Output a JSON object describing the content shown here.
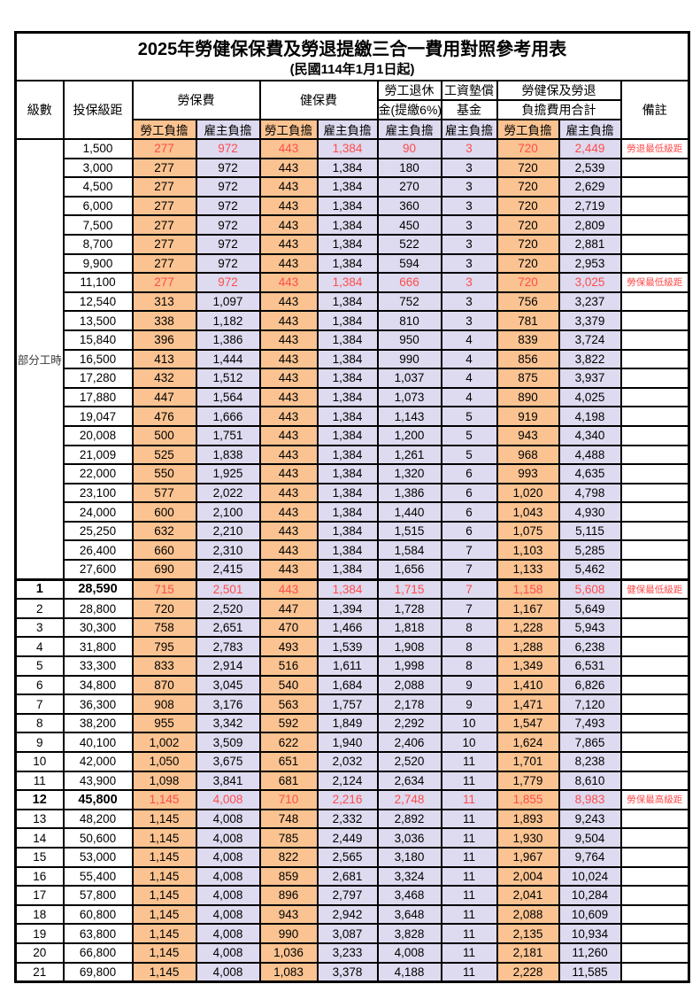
{
  "title": "2025年勞健保保費及勞退提繳三合一費用對照參考用表",
  "subtitle": "(民國114年1月1日起)",
  "headers": {
    "level": "級數",
    "bracket": "投保級距",
    "labor": "勞保費",
    "health": "健保費",
    "pension_line1": "勞工退休",
    "pension_line2": "金(提繳6%)",
    "fund_line1": "工資墊償",
    "fund_line2": "基金",
    "total_line1": "勞健保及勞退",
    "total_line2": "負擔費用合計",
    "note": "備註",
    "employee_share": "勞工負擔",
    "employer_share": "雇主負擔"
  },
  "part_time_label": "部分工時",
  "part_time_rowspan": 23,
  "colors": {
    "employee_bg": "#FAC391",
    "employer_bg": "#DEDAEF",
    "highlight_text": "#FF4C4C"
  },
  "rows": [
    {
      "level": "",
      "bracket": "1,500",
      "labor_employee": "277",
      "labor_employer": "972",
      "health_employee": "443",
      "health_employer": "1,384",
      "pension_employer": "90",
      "fund_employer": "3",
      "total_employee": "720",
      "total_employer": "2,449",
      "note": "勞退最低級距",
      "highlight": true,
      "bold": false
    },
    {
      "level": "",
      "bracket": "3,000",
      "labor_employee": "277",
      "labor_employer": "972",
      "health_employee": "443",
      "health_employer": "1,384",
      "pension_employer": "180",
      "fund_employer": "3",
      "total_employee": "720",
      "total_employer": "2,539",
      "note": "",
      "highlight": false,
      "bold": false
    },
    {
      "level": "",
      "bracket": "4,500",
      "labor_employee": "277",
      "labor_employer": "972",
      "health_employee": "443",
      "health_employer": "1,384",
      "pension_employer": "270",
      "fund_employer": "3",
      "total_employee": "720",
      "total_employer": "2,629",
      "note": "",
      "highlight": false,
      "bold": false
    },
    {
      "level": "",
      "bracket": "6,000",
      "labor_employee": "277",
      "labor_employer": "972",
      "health_employee": "443",
      "health_employer": "1,384",
      "pension_employer": "360",
      "fund_employer": "3",
      "total_employee": "720",
      "total_employer": "2,719",
      "note": "",
      "highlight": false,
      "bold": false
    },
    {
      "level": "",
      "bracket": "7,500",
      "labor_employee": "277",
      "labor_employer": "972",
      "health_employee": "443",
      "health_employer": "1,384",
      "pension_employer": "450",
      "fund_employer": "3",
      "total_employee": "720",
      "total_employer": "2,809",
      "note": "",
      "highlight": false,
      "bold": false
    },
    {
      "level": "",
      "bracket": "8,700",
      "labor_employee": "277",
      "labor_employer": "972",
      "health_employee": "443",
      "health_employer": "1,384",
      "pension_employer": "522",
      "fund_employer": "3",
      "total_employee": "720",
      "total_employer": "2,881",
      "note": "",
      "highlight": false,
      "bold": false
    },
    {
      "level": "",
      "bracket": "9,900",
      "labor_employee": "277",
      "labor_employer": "972",
      "health_employee": "443",
      "health_employer": "1,384",
      "pension_employer": "594",
      "fund_employer": "3",
      "total_employee": "720",
      "total_employer": "2,953",
      "note": "",
      "highlight": false,
      "bold": false
    },
    {
      "level": "",
      "bracket": "11,100",
      "labor_employee": "277",
      "labor_employer": "972",
      "health_employee": "443",
      "health_employer": "1,384",
      "pension_employer": "666",
      "fund_employer": "3",
      "total_employee": "720",
      "total_employer": "3,025",
      "note": "勞保最低級距",
      "highlight": true,
      "bold": false
    },
    {
      "level": "",
      "bracket": "12,540",
      "labor_employee": "313",
      "labor_employer": "1,097",
      "health_employee": "443",
      "health_employer": "1,384",
      "pension_employer": "752",
      "fund_employer": "3",
      "total_employee": "756",
      "total_employer": "3,237",
      "note": "",
      "highlight": false,
      "bold": false
    },
    {
      "level": "",
      "bracket": "13,500",
      "labor_employee": "338",
      "labor_employer": "1,182",
      "health_employee": "443",
      "health_employer": "1,384",
      "pension_employer": "810",
      "fund_employer": "3",
      "total_employee": "781",
      "total_employer": "3,379",
      "note": "",
      "highlight": false,
      "bold": false
    },
    {
      "level": "",
      "bracket": "15,840",
      "labor_employee": "396",
      "labor_employer": "1,386",
      "health_employee": "443",
      "health_employer": "1,384",
      "pension_employer": "950",
      "fund_employer": "4",
      "total_employee": "839",
      "total_employer": "3,724",
      "note": "",
      "highlight": false,
      "bold": false
    },
    {
      "level": "",
      "bracket": "16,500",
      "labor_employee": "413",
      "labor_employer": "1,444",
      "health_employee": "443",
      "health_employer": "1,384",
      "pension_employer": "990",
      "fund_employer": "4",
      "total_employee": "856",
      "total_employer": "3,822",
      "note": "",
      "highlight": false,
      "bold": false
    },
    {
      "level": "",
      "bracket": "17,280",
      "labor_employee": "432",
      "labor_employer": "1,512",
      "health_employee": "443",
      "health_employer": "1,384",
      "pension_employer": "1,037",
      "fund_employer": "4",
      "total_employee": "875",
      "total_employer": "3,937",
      "note": "",
      "highlight": false,
      "bold": false
    },
    {
      "level": "",
      "bracket": "17,880",
      "labor_employee": "447",
      "labor_employer": "1,564",
      "health_employee": "443",
      "health_employer": "1,384",
      "pension_employer": "1,073",
      "fund_employer": "4",
      "total_employee": "890",
      "total_employer": "4,025",
      "note": "",
      "highlight": false,
      "bold": false
    },
    {
      "level": "",
      "bracket": "19,047",
      "labor_employee": "476",
      "labor_employer": "1,666",
      "health_employee": "443",
      "health_employer": "1,384",
      "pension_employer": "1,143",
      "fund_employer": "5",
      "total_employee": "919",
      "total_employer": "4,198",
      "note": "",
      "highlight": false,
      "bold": false
    },
    {
      "level": "",
      "bracket": "20,008",
      "labor_employee": "500",
      "labor_employer": "1,751",
      "health_employee": "443",
      "health_employer": "1,384",
      "pension_employer": "1,200",
      "fund_employer": "5",
      "total_employee": "943",
      "total_employer": "4,340",
      "note": "",
      "highlight": false,
      "bold": false
    },
    {
      "level": "",
      "bracket": "21,009",
      "labor_employee": "525",
      "labor_employer": "1,838",
      "health_employee": "443",
      "health_employer": "1,384",
      "pension_employer": "1,261",
      "fund_employer": "5",
      "total_employee": "968",
      "total_employer": "4,488",
      "note": "",
      "highlight": false,
      "bold": false
    },
    {
      "level": "",
      "bracket": "22,000",
      "labor_employee": "550",
      "labor_employer": "1,925",
      "health_employee": "443",
      "health_employer": "1,384",
      "pension_employer": "1,320",
      "fund_employer": "6",
      "total_employee": "993",
      "total_employer": "4,635",
      "note": "",
      "highlight": false,
      "bold": false
    },
    {
      "level": "",
      "bracket": "23,100",
      "labor_employee": "577",
      "labor_employer": "2,022",
      "health_employee": "443",
      "health_employer": "1,384",
      "pension_employer": "1,386",
      "fund_employer": "6",
      "total_employee": "1,020",
      "total_employer": "4,798",
      "note": "",
      "highlight": false,
      "bold": false
    },
    {
      "level": "",
      "bracket": "24,000",
      "labor_employee": "600",
      "labor_employer": "2,100",
      "health_employee": "443",
      "health_employer": "1,384",
      "pension_employer": "1,440",
      "fund_employer": "6",
      "total_employee": "1,043",
      "total_employer": "4,930",
      "note": "",
      "highlight": false,
      "bold": false
    },
    {
      "level": "",
      "bracket": "25,250",
      "labor_employee": "632",
      "labor_employer": "2,210",
      "health_employee": "443",
      "health_employer": "1,384",
      "pension_employer": "1,515",
      "fund_employer": "6",
      "total_employee": "1,075",
      "total_employer": "5,115",
      "note": "",
      "highlight": false,
      "bold": false
    },
    {
      "level": "",
      "bracket": "26,400",
      "labor_employee": "660",
      "labor_employer": "2,310",
      "health_employee": "443",
      "health_employer": "1,384",
      "pension_employer": "1,584",
      "fund_employer": "7",
      "total_employee": "1,103",
      "total_employer": "5,285",
      "note": "",
      "highlight": false,
      "bold": false
    },
    {
      "level": "",
      "bracket": "27,600",
      "labor_employee": "690",
      "labor_employer": "2,415",
      "health_employee": "443",
      "health_employer": "1,384",
      "pension_employer": "1,656",
      "fund_employer": "7",
      "total_employee": "1,133",
      "total_employer": "5,462",
      "note": "",
      "highlight": false,
      "bold": false
    },
    {
      "level": "1",
      "bracket": "28,590",
      "labor_employee": "715",
      "labor_employer": "2,501",
      "health_employee": "443",
      "health_employer": "1,384",
      "pension_employer": "1,715",
      "fund_employer": "7",
      "total_employee": "1,158",
      "total_employer": "5,608",
      "note": "健保最低級距",
      "highlight": true,
      "bold": true
    },
    {
      "level": "2",
      "bracket": "28,800",
      "labor_employee": "720",
      "labor_employer": "2,520",
      "health_employee": "447",
      "health_employer": "1,394",
      "pension_employer": "1,728",
      "fund_employer": "7",
      "total_employee": "1,167",
      "total_employer": "5,649",
      "note": "",
      "highlight": false,
      "bold": false
    },
    {
      "level": "3",
      "bracket": "30,300",
      "labor_employee": "758",
      "labor_employer": "2,651",
      "health_employee": "470",
      "health_employer": "1,466",
      "pension_employer": "1,818",
      "fund_employer": "8",
      "total_employee": "1,228",
      "total_employer": "5,943",
      "note": "",
      "highlight": false,
      "bold": false
    },
    {
      "level": "4",
      "bracket": "31,800",
      "labor_employee": "795",
      "labor_employer": "2,783",
      "health_employee": "493",
      "health_employer": "1,539",
      "pension_employer": "1,908",
      "fund_employer": "8",
      "total_employee": "1,288",
      "total_employer": "6,238",
      "note": "",
      "highlight": false,
      "bold": false
    },
    {
      "level": "5",
      "bracket": "33,300",
      "labor_employee": "833",
      "labor_employer": "2,914",
      "health_employee": "516",
      "health_employer": "1,611",
      "pension_employer": "1,998",
      "fund_employer": "8",
      "total_employee": "1,349",
      "total_employer": "6,531",
      "note": "",
      "highlight": false,
      "bold": false
    },
    {
      "level": "6",
      "bracket": "34,800",
      "labor_employee": "870",
      "labor_employer": "3,045",
      "health_employee": "540",
      "health_employer": "1,684",
      "pension_employer": "2,088",
      "fund_employer": "9",
      "total_employee": "1,410",
      "total_employer": "6,826",
      "note": "",
      "highlight": false,
      "bold": false
    },
    {
      "level": "7",
      "bracket": "36,300",
      "labor_employee": "908",
      "labor_employer": "3,176",
      "health_employee": "563",
      "health_employer": "1,757",
      "pension_employer": "2,178",
      "fund_employer": "9",
      "total_employee": "1,471",
      "total_employer": "7,120",
      "note": "",
      "highlight": false,
      "bold": false
    },
    {
      "level": "8",
      "bracket": "38,200",
      "labor_employee": "955",
      "labor_employer": "3,342",
      "health_employee": "592",
      "health_employer": "1,849",
      "pension_employer": "2,292",
      "fund_employer": "10",
      "total_employee": "1,547",
      "total_employer": "7,493",
      "note": "",
      "highlight": false,
      "bold": false
    },
    {
      "level": "9",
      "bracket": "40,100",
      "labor_employee": "1,002",
      "labor_employer": "3,509",
      "health_employee": "622",
      "health_employer": "1,940",
      "pension_employer": "2,406",
      "fund_employer": "10",
      "total_employee": "1,624",
      "total_employer": "7,865",
      "note": "",
      "highlight": false,
      "bold": false
    },
    {
      "level": "10",
      "bracket": "42,000",
      "labor_employee": "1,050",
      "labor_employer": "3,675",
      "health_employee": "651",
      "health_employer": "2,032",
      "pension_employer": "2,520",
      "fund_employer": "11",
      "total_employee": "1,701",
      "total_employer": "8,238",
      "note": "",
      "highlight": false,
      "bold": false
    },
    {
      "level": "11",
      "bracket": "43,900",
      "labor_employee": "1,098",
      "labor_employer": "3,841",
      "health_employee": "681",
      "health_employer": "2,124",
      "pension_employer": "2,634",
      "fund_employer": "11",
      "total_employee": "1,779",
      "total_employer": "8,610",
      "note": "",
      "highlight": false,
      "bold": false
    },
    {
      "level": "12",
      "bracket": "45,800",
      "labor_employee": "1,145",
      "labor_employer": "4,008",
      "health_employee": "710",
      "health_employer": "2,216",
      "pension_employer": "2,748",
      "fund_employer": "11",
      "total_employee": "1,855",
      "total_employer": "8,983",
      "note": "勞保最高級距",
      "highlight": true,
      "bold": true
    },
    {
      "level": "13",
      "bracket": "48,200",
      "labor_employee": "1,145",
      "labor_employer": "4,008",
      "health_employee": "748",
      "health_employer": "2,332",
      "pension_employer": "2,892",
      "fund_employer": "11",
      "total_employee": "1,893",
      "total_employer": "9,243",
      "note": "",
      "highlight": false,
      "bold": false
    },
    {
      "level": "14",
      "bracket": "50,600",
      "labor_employee": "1,145",
      "labor_employer": "4,008",
      "health_employee": "785",
      "health_employer": "2,449",
      "pension_employer": "3,036",
      "fund_employer": "11",
      "total_employee": "1,930",
      "total_employer": "9,504",
      "note": "",
      "highlight": false,
      "bold": false
    },
    {
      "level": "15",
      "bracket": "53,000",
      "labor_employee": "1,145",
      "labor_employer": "4,008",
      "health_employee": "822",
      "health_employer": "2,565",
      "pension_employer": "3,180",
      "fund_employer": "11",
      "total_employee": "1,967",
      "total_employer": "9,764",
      "note": "",
      "highlight": false,
      "bold": false
    },
    {
      "level": "16",
      "bracket": "55,400",
      "labor_employee": "1,145",
      "labor_employer": "4,008",
      "health_employee": "859",
      "health_employer": "2,681",
      "pension_employer": "3,324",
      "fund_employer": "11",
      "total_employee": "2,004",
      "total_employer": "10,024",
      "note": "",
      "highlight": false,
      "bold": false
    },
    {
      "level": "17",
      "bracket": "57,800",
      "labor_employee": "1,145",
      "labor_employer": "4,008",
      "health_employee": "896",
      "health_employer": "2,797",
      "pension_employer": "3,468",
      "fund_employer": "11",
      "total_employee": "2,041",
      "total_employer": "10,284",
      "note": "",
      "highlight": false,
      "bold": false
    },
    {
      "level": "18",
      "bracket": "60,800",
      "labor_employee": "1,145",
      "labor_employer": "4,008",
      "health_employee": "943",
      "health_employer": "2,942",
      "pension_employer": "3,648",
      "fund_employer": "11",
      "total_employee": "2,088",
      "total_employer": "10,609",
      "note": "",
      "highlight": false,
      "bold": false
    },
    {
      "level": "19",
      "bracket": "63,800",
      "labor_employee": "1,145",
      "labor_employer": "4,008",
      "health_employee": "990",
      "health_employer": "3,087",
      "pension_employer": "3,828",
      "fund_employer": "11",
      "total_employee": "2,135",
      "total_employer": "10,934",
      "note": "",
      "highlight": false,
      "bold": false
    },
    {
      "level": "20",
      "bracket": "66,800",
      "labor_employee": "1,145",
      "labor_employer": "4,008",
      "health_employee": "1,036",
      "health_employer": "3,233",
      "pension_employer": "4,008",
      "fund_employer": "11",
      "total_employee": "2,181",
      "total_employer": "11,260",
      "note": "",
      "highlight": false,
      "bold": false
    },
    {
      "level": "21",
      "bracket": "69,800",
      "labor_employee": "1,145",
      "labor_employer": "4,008",
      "health_employee": "1,083",
      "health_employer": "3,378",
      "pension_employer": "4,188",
      "fund_employer": "11",
      "total_employee": "2,228",
      "total_employer": "11,585",
      "note": "",
      "highlight": false,
      "bold": false
    }
  ]
}
